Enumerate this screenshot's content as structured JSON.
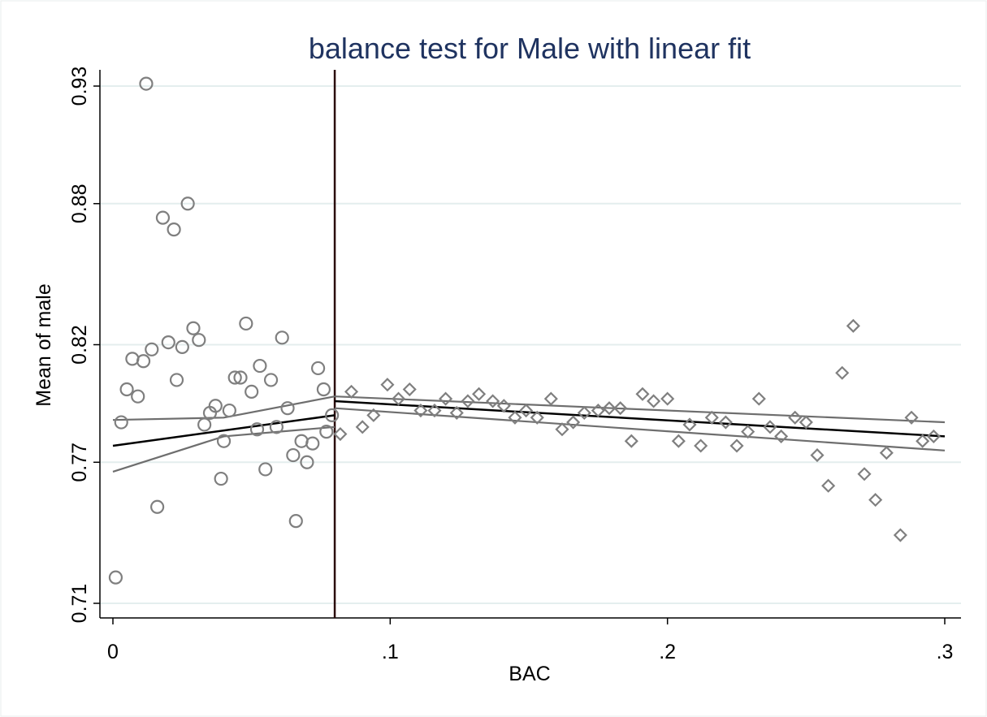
{
  "chart_data": {
    "type": "scatter",
    "title": "balance test for Male with linear fit",
    "xlabel": "BAC",
    "ylabel": "Mean of male",
    "xlim": [
      0,
      0.3
    ],
    "ylim": [
      0.71,
      0.93
    ],
    "x_ticks": [
      {
        "value": 0,
        "label": "0"
      },
      {
        "value": 0.1,
        "label": ".1"
      },
      {
        "value": 0.2,
        "label": ".2"
      },
      {
        "value": 0.3,
        "label": ".3"
      }
    ],
    "y_ticks": [
      {
        "value": 0.71,
        "label": "0.71"
      },
      {
        "value": 0.77,
        "label": "0.77"
      },
      {
        "value": 0.82,
        "label": "0.82"
      },
      {
        "value": 0.88,
        "label": "0.88"
      },
      {
        "value": 0.93,
        "label": "0.93"
      }
    ],
    "grid": "horizontal",
    "cutoff": 0.08,
    "colors": {
      "markers": "#7f7f7f",
      "fit": "#000000",
      "ci": "#6e6e6e",
      "cutoff_line": "#2a0a0a",
      "grid": "#e4eeee",
      "title": "#1f3360"
    },
    "series": [
      {
        "marker": "circle",
        "points": [
          [
            0.001,
            0.721
          ],
          [
            0.003,
            0.787
          ],
          [
            0.005,
            0.801
          ],
          [
            0.007,
            0.814
          ],
          [
            0.009,
            0.798
          ],
          [
            0.011,
            0.813
          ],
          [
            0.012,
            0.931
          ],
          [
            0.014,
            0.818
          ],
          [
            0.016,
            0.751
          ],
          [
            0.018,
            0.874
          ],
          [
            0.02,
            0.821
          ],
          [
            0.022,
            0.869
          ],
          [
            0.023,
            0.805
          ],
          [
            0.025,
            0.819
          ],
          [
            0.027,
            0.88
          ],
          [
            0.029,
            0.827
          ],
          [
            0.031,
            0.822
          ],
          [
            0.033,
            0.786
          ],
          [
            0.035,
            0.791
          ],
          [
            0.037,
            0.794
          ],
          [
            0.039,
            0.763
          ],
          [
            0.04,
            0.779
          ],
          [
            0.042,
            0.792
          ],
          [
            0.044,
            0.806
          ],
          [
            0.046,
            0.806
          ],
          [
            0.048,
            0.829
          ],
          [
            0.05,
            0.8
          ],
          [
            0.052,
            0.784
          ],
          [
            0.053,
            0.811
          ],
          [
            0.055,
            0.767
          ],
          [
            0.057,
            0.805
          ],
          [
            0.059,
            0.785
          ],
          [
            0.061,
            0.823
          ],
          [
            0.063,
            0.793
          ],
          [
            0.065,
            0.773
          ],
          [
            0.066,
            0.745
          ],
          [
            0.068,
            0.779
          ],
          [
            0.07,
            0.77
          ],
          [
            0.072,
            0.778
          ],
          [
            0.074,
            0.81
          ],
          [
            0.076,
            0.801
          ],
          [
            0.077,
            0.783
          ],
          [
            0.079,
            0.79
          ]
        ]
      },
      {
        "marker": "diamond",
        "points": [
          [
            0.082,
            0.782
          ],
          [
            0.086,
            0.8
          ],
          [
            0.09,
            0.785
          ],
          [
            0.094,
            0.79
          ],
          [
            0.099,
            0.803
          ],
          [
            0.103,
            0.797
          ],
          [
            0.107,
            0.801
          ],
          [
            0.111,
            0.792
          ],
          [
            0.116,
            0.792
          ],
          [
            0.12,
            0.797
          ],
          [
            0.124,
            0.791
          ],
          [
            0.128,
            0.796
          ],
          [
            0.132,
            0.799
          ],
          [
            0.137,
            0.796
          ],
          [
            0.141,
            0.794
          ],
          [
            0.145,
            0.789
          ],
          [
            0.149,
            0.792
          ],
          [
            0.153,
            0.789
          ],
          [
            0.158,
            0.797
          ],
          [
            0.162,
            0.784
          ],
          [
            0.166,
            0.787
          ],
          [
            0.17,
            0.791
          ],
          [
            0.175,
            0.792
          ],
          [
            0.179,
            0.793
          ],
          [
            0.183,
            0.793
          ],
          [
            0.187,
            0.779
          ],
          [
            0.191,
            0.799
          ],
          [
            0.195,
            0.796
          ],
          [
            0.2,
            0.797
          ],
          [
            0.204,
            0.779
          ],
          [
            0.208,
            0.786
          ],
          [
            0.212,
            0.777
          ],
          [
            0.216,
            0.789
          ],
          [
            0.221,
            0.787
          ],
          [
            0.225,
            0.777
          ],
          [
            0.229,
            0.783
          ],
          [
            0.233,
            0.797
          ],
          [
            0.237,
            0.785
          ],
          [
            0.241,
            0.781
          ],
          [
            0.246,
            0.789
          ],
          [
            0.25,
            0.787
          ],
          [
            0.254,
            0.773
          ],
          [
            0.258,
            0.76
          ],
          [
            0.263,
            0.808
          ],
          [
            0.267,
            0.828
          ],
          [
            0.271,
            0.765
          ],
          [
            0.275,
            0.754
          ],
          [
            0.279,
            0.774
          ],
          [
            0.284,
            0.739
          ],
          [
            0.288,
            0.789
          ],
          [
            0.292,
            0.779
          ],
          [
            0.296,
            0.781
          ]
        ]
      }
    ],
    "fits": [
      {
        "name": "fit",
        "x": [
          0.0,
          0.08
        ],
        "y": [
          0.777,
          0.79
        ]
      },
      {
        "name": "ci-upper",
        "x": [
          0.0,
          0.04,
          0.08
        ],
        "y": [
          0.788,
          0.789,
          0.798
        ]
      },
      {
        "name": "ci-lower",
        "x": [
          0.0,
          0.04,
          0.08
        ],
        "y": [
          0.766,
          0.781,
          0.785
        ]
      },
      {
        "name": "fit",
        "x": [
          0.08,
          0.3
        ],
        "y": [
          0.796,
          0.781
        ]
      },
      {
        "name": "ci-upper",
        "x": [
          0.08,
          0.3
        ],
        "y": [
          0.798,
          0.787
        ]
      },
      {
        "name": "ci-lower",
        "x": [
          0.08,
          0.3
        ],
        "y": [
          0.793,
          0.775
        ]
      }
    ]
  }
}
